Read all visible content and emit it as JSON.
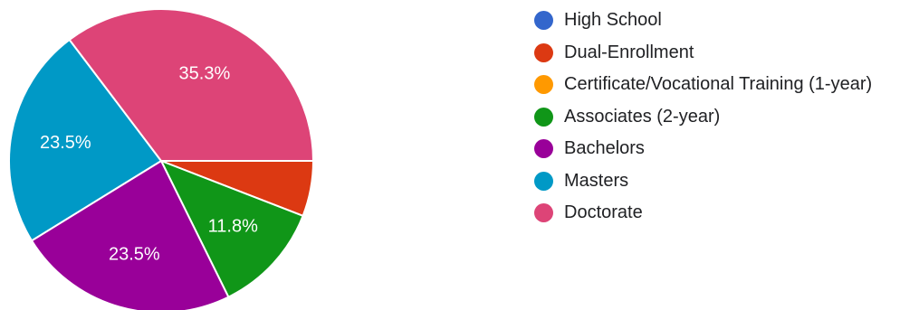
{
  "chart_data": {
    "type": "pie",
    "title": "",
    "categories": [
      "High School",
      "Dual-Enrollment",
      "Certificate/Vocational Training (1-year)",
      "Associates (2-year)",
      "Bachelors",
      "Masters",
      "Doctorate"
    ],
    "values": [
      0,
      5.9,
      0,
      11.8,
      23.5,
      23.5,
      35.3
    ],
    "data_labels": [
      "",
      "",
      "",
      "11.8%",
      "23.5%",
      "23.5%",
      "35.3%"
    ],
    "colors": [
      "#3366CC",
      "#DC3912",
      "#FF9900",
      "#109618",
      "#990099",
      "#0099C6",
      "#DD4477"
    ],
    "legend_position": "right"
  }
}
